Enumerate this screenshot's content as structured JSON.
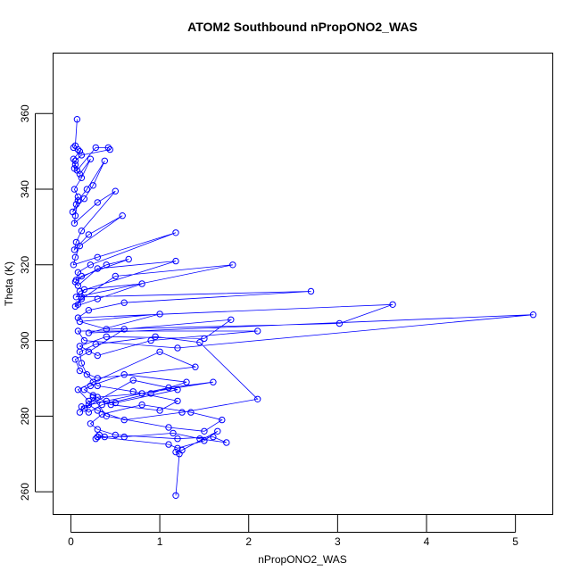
{
  "chart_data": {
    "type": "scatter",
    "title": "ATOM2 Southbound nPropONO2_WAS",
    "xlabel": "nPropONO2_WAS",
    "ylabel": "Theta (K)",
    "xlim": [
      -0.2,
      5.42
    ],
    "ylim": [
      254,
      376
    ],
    "xticks": [
      0,
      1,
      2,
      3,
      4,
      5
    ],
    "yticks": [
      260,
      280,
      300,
      320,
      340,
      360
    ],
    "grid": false,
    "legend": "none",
    "color": "#0000ff",
    "marker": "open-circle",
    "connected": true,
    "series": [
      {
        "x": [
          0.07,
          0.05,
          0.03,
          0.08,
          0.1,
          0.03,
          0.05,
          0.07,
          0.28,
          0.42,
          0.44,
          0.12,
          0.05,
          0.04,
          0.1,
          0.22,
          0.12,
          0.04,
          0.08,
          0.06,
          0.02,
          0.15,
          0.25,
          0.38,
          0.18,
          0.08,
          0.05,
          0.04,
          0.3,
          0.5,
          0.12,
          0.06,
          0.04,
          0.2,
          0.58,
          0.1,
          0.05,
          0.03,
          0.3,
          1.18,
          0.22,
          0.08,
          0.06,
          0.4,
          0.65,
          0.12,
          0.05,
          0.08,
          0.3,
          1.18,
          0.1,
          0.06,
          1.82,
          0.5,
          0.12,
          0.08,
          0.15,
          0.8,
          0.3,
          0.05,
          0.12,
          2.7,
          0.6,
          0.2,
          0.08,
          3.62,
          3.02,
          0.4,
          0.1,
          1.0,
          0.2,
          5.2,
          1.2,
          0.15,
          0.08,
          2.1,
          0.9,
          0.3,
          0.1,
          0.4,
          1.5,
          1.8,
          0.6,
          0.2,
          0.05,
          0.1,
          0.3,
          1.4,
          1.0,
          0.25,
          0.08,
          0.2,
          0.5,
          1.2,
          0.7,
          0.15,
          0.1,
          0.3,
          0.8,
          1.6,
          1.1,
          0.4,
          0.12,
          0.2,
          0.35,
          0.9,
          1.3,
          0.6,
          0.22,
          0.15,
          0.25,
          0.45,
          1.0,
          1.2,
          0.7,
          0.3,
          0.18,
          0.12,
          0.1,
          0.28,
          0.95,
          1.45,
          2.1,
          1.25,
          0.6,
          0.3,
          0.2,
          0.25,
          0.4,
          1.1,
          1.5,
          1.7,
          1.35,
          0.8,
          0.35,
          0.22,
          0.3,
          0.5,
          1.2,
          1.6,
          1.75,
          1.45,
          1.15,
          0.6,
          0.3,
          0.28,
          0.32,
          0.38,
          0.3,
          1.1,
          1.2,
          1.5,
          1.65,
          1.25,
          1.18,
          1.22,
          1.18
        ],
        "y": [
          358.5,
          351.5,
          351.0,
          350.5,
          350.0,
          348.0,
          346.5,
          345.0,
          351.0,
          351.0,
          350.5,
          349.0,
          347.5,
          345.5,
          344.0,
          348.0,
          343.0,
          340.0,
          338.0,
          336.0,
          334.0,
          337.5,
          341.0,
          347.5,
          340.0,
          337.0,
          333.0,
          331.0,
          336.5,
          339.5,
          329.0,
          326.0,
          324.0,
          328.0,
          333.0,
          325.0,
          322.0,
          320.0,
          322.0,
          328.5,
          320.0,
          318.0,
          316.0,
          320.0,
          321.5,
          317.0,
          315.5,
          314.5,
          319.0,
          321.0,
          313.0,
          311.5,
          320.0,
          317.0,
          311.0,
          309.5,
          313.5,
          315.0,
          311.0,
          309.0,
          311.5,
          313.0,
          310.0,
          308.0,
          306.0,
          309.5,
          304.5,
          303.0,
          305.0,
          307.0,
          302.0,
          306.8,
          298.0,
          300.0,
          302.5,
          302.5,
          300.0,
          296.0,
          298.5,
          301.0,
          300.5,
          305.5,
          303.0,
          297.0,
          295.0,
          292.0,
          290.0,
          293.0,
          297.0,
          289.0,
          287.0,
          284.0,
          283.5,
          287.0,
          289.5,
          282.0,
          281.0,
          285.0,
          286.0,
          289.0,
          287.5,
          284.0,
          282.5,
          281.0,
          283.0,
          286.0,
          289.0,
          291.0,
          288.0,
          287.0,
          285.5,
          283.0,
          281.5,
          284.0,
          286.5,
          288.0,
          291.0,
          294.0,
          297.0,
          299.0,
          301.0,
          299.5,
          284.5,
          281.0,
          279.0,
          281.5,
          283.0,
          285.0,
          280.0,
          277.0,
          276.0,
          279.0,
          281.0,
          283.0,
          280.5,
          278.0,
          276.5,
          275.0,
          274.0,
          274.5,
          273.0,
          274.0,
          275.5,
          274.5,
          274.5,
          274.0,
          275.0,
          274.5,
          274.5,
          272.5,
          271.5,
          273.5,
          276.0,
          271.0,
          270.5,
          270.0,
          259.0
        ]
      }
    ]
  }
}
